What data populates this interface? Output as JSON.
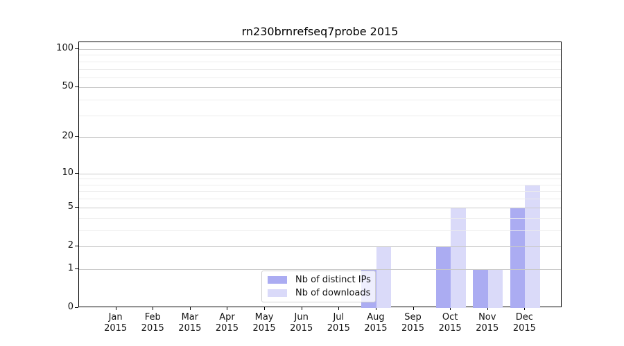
{
  "chart_data": {
    "type": "bar",
    "title": "rn230brnrefseq7probe 2015",
    "categories": [
      "Jan 2015",
      "Feb 2015",
      "Mar 2015",
      "Apr 2015",
      "May 2015",
      "Jun 2015",
      "Jul 2015",
      "Aug 2015",
      "Sep 2015",
      "Oct 2015",
      "Nov 2015",
      "Dec 2015"
    ],
    "series": [
      {
        "name": "Nb of distinct IPs",
        "color": "#abacf2",
        "values": [
          0,
          0,
          0,
          0,
          0,
          0,
          0,
          1,
          0,
          2,
          1,
          5
        ]
      },
      {
        "name": "Nb of downloads",
        "color": "#dadaf9",
        "values": [
          0,
          0,
          0,
          0,
          0,
          0,
          0,
          2,
          0,
          5,
          1,
          8
        ]
      }
    ],
    "xlabel": "",
    "ylabel": "",
    "y_axis": {
      "scale": "log1p",
      "tick_values": [
        0,
        1,
        2,
        5,
        10,
        20,
        50,
        100
      ],
      "minor_gridline_values": [
        3,
        4,
        6,
        7,
        8,
        9,
        30,
        40,
        60,
        70,
        80,
        90
      ],
      "ylim": [
        0,
        113.25
      ]
    },
    "legend": {
      "position": "lower center"
    },
    "grid": {
      "major_color": "#c9c9c9",
      "minor_color": "#ececec"
    },
    "axis_color": "#000000",
    "text_color": "#111111"
  }
}
